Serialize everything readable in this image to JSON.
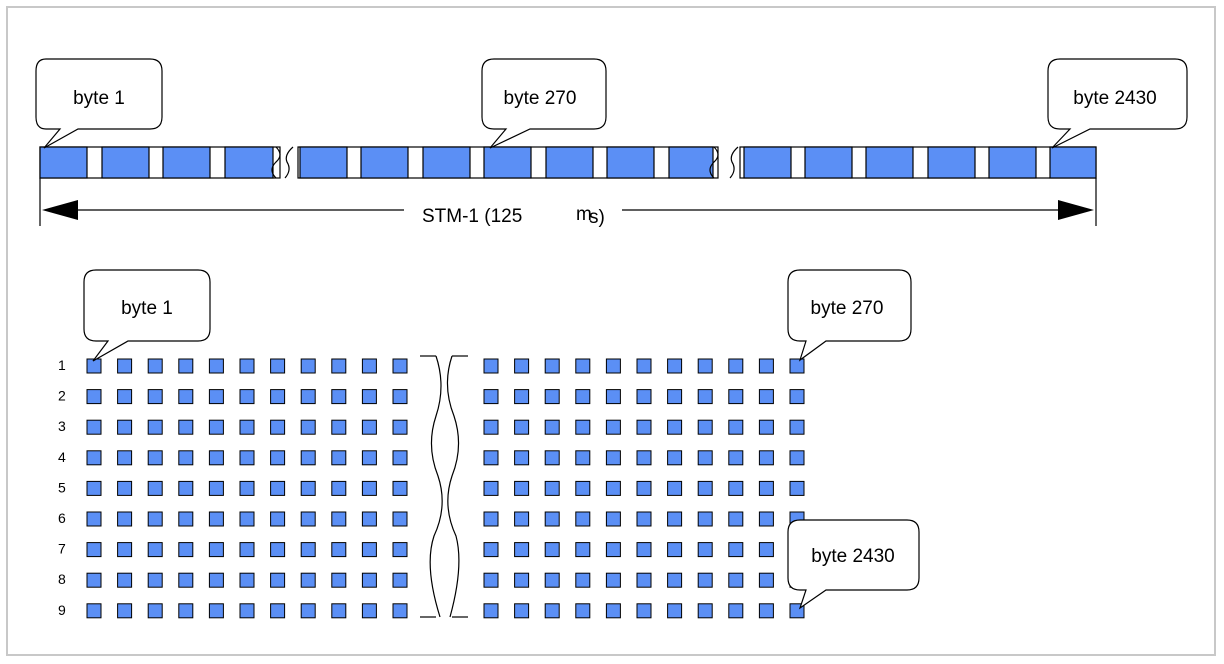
{
  "colors": {
    "byte_fill": "#5b8ff5",
    "stroke": "#000000",
    "frame": "#c8c8c8"
  },
  "serial_stream": {
    "callouts": {
      "start": "byte 1",
      "middle": "byte 270",
      "end": "byte 2430"
    },
    "duration_label": "STM-1 (125",
    "duration_unit_symbol": "m",
    "duration_unit_rest": "s)"
  },
  "frame_matrix": {
    "callouts": {
      "top_left": "byte 1",
      "top_right": "byte 270",
      "bottom_right": "byte 2430"
    },
    "row_labels": [
      "1",
      "2",
      "3",
      "4",
      "5",
      "6",
      "7",
      "8",
      "9"
    ],
    "rows": 9,
    "visible_columns_left": 11,
    "visible_columns_right": 11
  }
}
